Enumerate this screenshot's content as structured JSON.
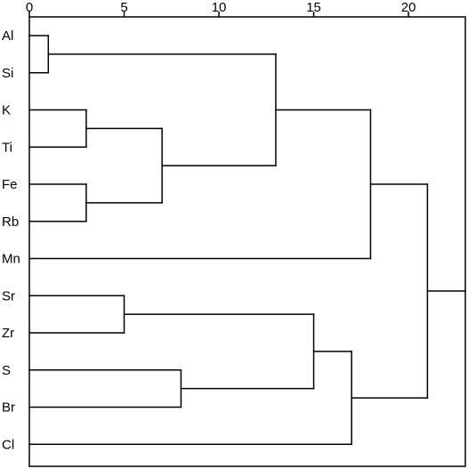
{
  "chart_data": {
    "type": "dendrogram",
    "title": "",
    "xlabel": "",
    "ylabel": "",
    "orientation": "horizontal",
    "x_axis": {
      "position": "top",
      "range": [
        0,
        23
      ],
      "ticks": [
        0,
        5,
        10,
        15,
        20
      ],
      "tick_labels": [
        "0",
        "5",
        "10",
        "15",
        "20"
      ]
    },
    "leaves": [
      "Al",
      "Si",
      "K",
      "Ti",
      "Fe",
      "Rb",
      "Mn",
      "Sr",
      "Zr",
      "S",
      "Br",
      "Cl"
    ],
    "merges": [
      {
        "a": "Al",
        "b": "Si",
        "distance": 1
      },
      {
        "a": "K",
        "b": "Ti",
        "distance": 3
      },
      {
        "a": "Fe",
        "b": "Rb",
        "distance": 3
      },
      {
        "a": "K+Ti",
        "b": "Fe+Rb",
        "distance": 7
      },
      {
        "a": "Al+Si",
        "b": "K+Ti+Fe+Rb",
        "distance": 13
      },
      {
        "a": "Al+Si+K+Ti+Fe+Rb",
        "b": "Mn",
        "distance": 18
      },
      {
        "a": "Sr",
        "b": "Zr",
        "distance": 5
      },
      {
        "a": "S",
        "b": "Br",
        "distance": 8
      },
      {
        "a": "Sr+Zr",
        "b": "S+Br",
        "distance": 15
      },
      {
        "a": "Sr+Zr+S+Br",
        "b": "Cl",
        "distance": 17
      },
      {
        "a": "Al+Si+K+Ti+Fe+Rb+Mn",
        "b": "Sr+Zr+S+Br+Cl",
        "distance": 21
      }
    ]
  }
}
